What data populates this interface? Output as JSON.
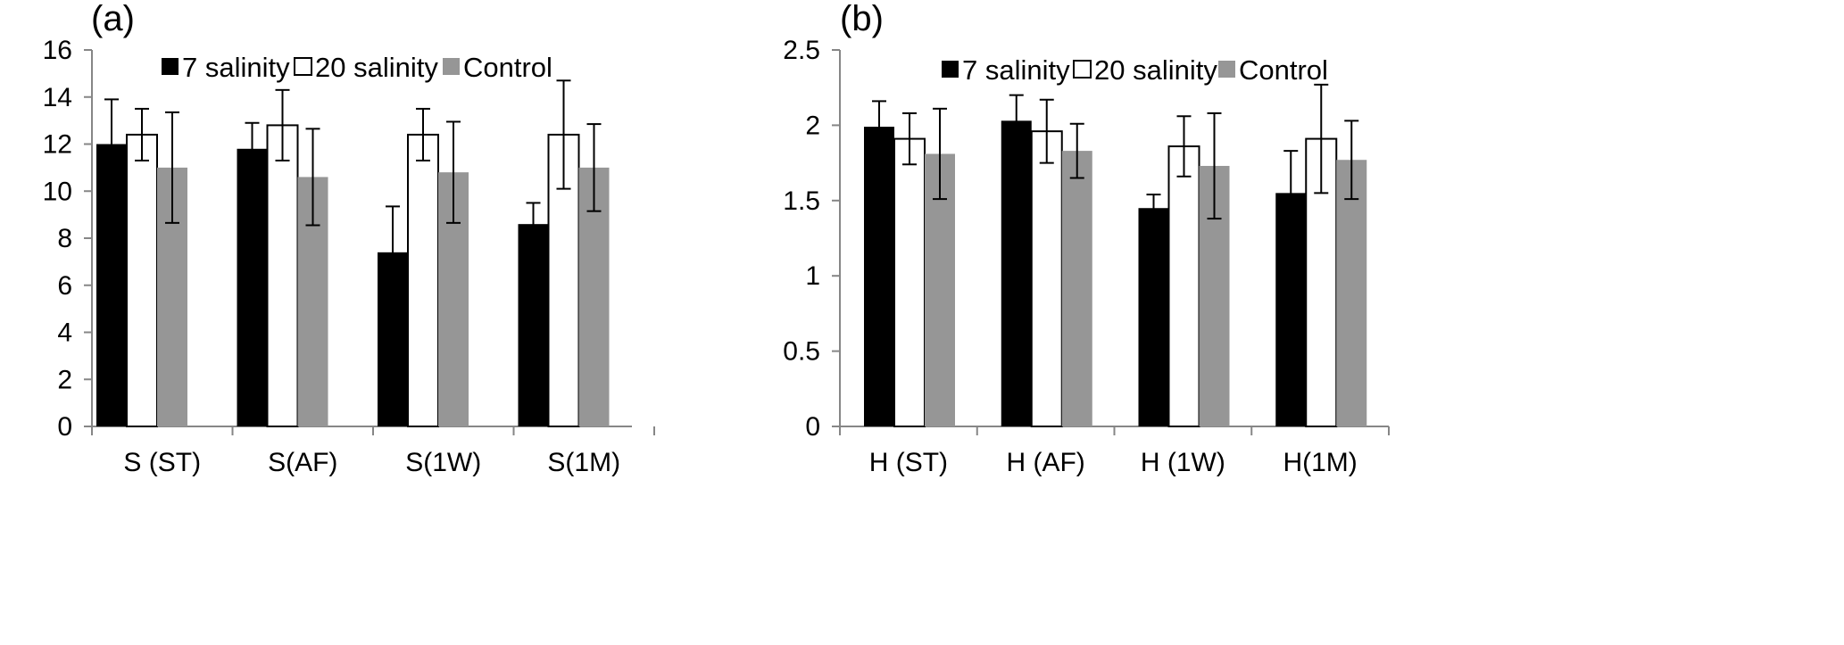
{
  "colors": {
    "s7": "#000000",
    "s20": "#ffffff",
    "control": "#969696",
    "axis": "#868686",
    "error": "#000000",
    "outline": "#000000"
  },
  "chart_data": [
    {
      "panel_label": "(a)",
      "type": "bar",
      "categories": [
        "S (ST)",
        "S(AF)",
        "S(1W)",
        "S(1M)"
      ],
      "ylim": [
        0,
        16
      ],
      "yticks": [
        0,
        2,
        4,
        6,
        8,
        10,
        12,
        14,
        16
      ],
      "ytick_labels": [
        "0",
        "2",
        "4",
        "6",
        "8",
        "10",
        "12",
        "14",
        "16"
      ],
      "legend": {
        "position": "top-center"
      },
      "series": [
        {
          "name": "7 salinity",
          "color_key": "s7",
          "values": [
            12.0,
            11.8,
            7.4,
            8.6
          ],
          "errors": [
            1.9,
            1.1,
            1.95,
            0.9
          ]
        },
        {
          "name": "20 salinity",
          "color_key": "s20",
          "values": [
            12.4,
            12.8,
            12.4,
            12.4
          ],
          "errors": [
            1.1,
            1.5,
            1.1,
            2.3
          ]
        },
        {
          "name": "Control",
          "color_key": "control",
          "values": [
            11.0,
            10.6,
            10.8,
            11.0
          ],
          "errors": [
            2.35,
            2.05,
            2.15,
            1.85
          ]
        }
      ]
    },
    {
      "panel_label": "(b)",
      "type": "bar",
      "categories": [
        "H (ST)",
        "H (AF)",
        "H (1W)",
        "H(1M)"
      ],
      "ylim": [
        0,
        2.5
      ],
      "yticks": [
        0,
        0.5,
        1,
        1.5,
        2,
        2.5
      ],
      "ytick_labels": [
        "0",
        "0.5",
        "1",
        "1.5",
        "2",
        "2.5"
      ],
      "legend": {
        "position": "top-center"
      },
      "series": [
        {
          "name": "7 salinity",
          "color_key": "s7",
          "values": [
            1.99,
            2.03,
            1.45,
            1.55
          ],
          "errors": [
            0.17,
            0.17,
            0.09,
            0.28
          ]
        },
        {
          "name": "20 salinity",
          "color_key": "s20",
          "values": [
            1.91,
            1.96,
            1.86,
            1.91
          ],
          "errors": [
            0.17,
            0.21,
            0.2,
            0.36
          ]
        },
        {
          "name": "Control",
          "color_key": "control",
          "values": [
            1.81,
            1.83,
            1.73,
            1.77
          ],
          "errors": [
            0.3,
            0.18,
            0.35,
            0.26
          ]
        }
      ]
    }
  ]
}
